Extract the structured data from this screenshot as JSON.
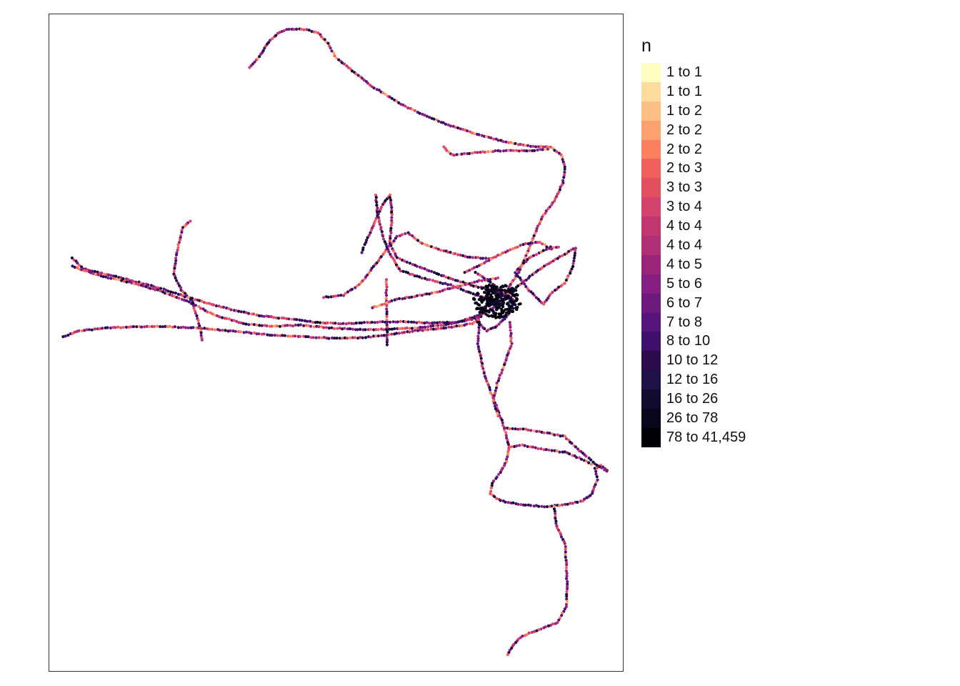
{
  "legend": {
    "title": "n",
    "classes": [
      {
        "label": "1 to 1",
        "color": "#FCFDBF"
      },
      {
        "label": "1 to 1",
        "color": "#FDDC9E"
      },
      {
        "label": "1 to 2",
        "color": "#FEBF84"
      },
      {
        "label": "2 to 2",
        "color": "#FEA16E"
      },
      {
        "label": "2 to 2",
        "color": "#FA815F"
      },
      {
        "label": "2 to 3",
        "color": "#F1605D"
      },
      {
        "label": "3 to 3",
        "color": "#E34F5E"
      },
      {
        "label": "3 to 4",
        "color": "#D3436E"
      },
      {
        "label": "4 to 4",
        "color": "#C2366F"
      },
      {
        "label": "4 to 4",
        "color": "#B02F77"
      },
      {
        "label": "4 to 5",
        "color": "#9A2479"
      },
      {
        "label": "5 to 6",
        "color": "#841E82"
      },
      {
        "label": "6 to 7",
        "color": "#6D1A7F"
      },
      {
        "label": "7 to 8",
        "color": "#56147D"
      },
      {
        "label": "8 to 10",
        "color": "#3E0F6B"
      },
      {
        "label": "10 to 12",
        "color": "#2B0B4C"
      },
      {
        "label": "12 to 16",
        "color": "#1D1147"
      },
      {
        "label": "16 to 26",
        "color": "#110B2F"
      },
      {
        "label": "26 to 78",
        "color": "#07061A"
      },
      {
        "label": "78 to 41,459",
        "color": "#000004"
      }
    ]
  }
}
